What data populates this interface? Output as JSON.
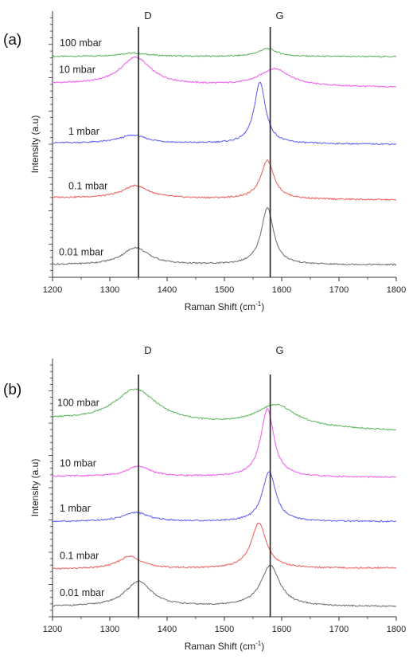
{
  "chart_data": [
    {
      "type": "line",
      "panel_label": "(a)",
      "xlabel": "Raman Shift (cm",
      "xlabel_sup": "-1",
      "xlabel_end": ")",
      "ylabel": "Intensity (a.u)",
      "xlim": [
        1200,
        1800
      ],
      "xticks": [
        "1200",
        "1300",
        "1400",
        "1500",
        "1600",
        "1700",
        "1800"
      ],
      "grid": false,
      "legend": "none",
      "reference_lines": [
        {
          "label": "D",
          "x": 1350
        },
        {
          "label": "G",
          "x": 1580
        }
      ],
      "series": [
        {
          "name": "100 mbar",
          "color": "#66b866",
          "baseline": 9.5,
          "slope": 0,
          "peaks": [
            {
              "x": 1340,
              "h": 0.15,
              "w": 35
            },
            {
              "x": 1575,
              "h": 0.35,
              "w": 20
            }
          ]
        },
        {
          "name": "10 mbar",
          "color": "#ee66ee",
          "baseline": 8.3,
          "slope": -0.15,
          "peaks": [
            {
              "x": 1345,
              "h": 1.2,
              "w": 32
            },
            {
              "x": 1588,
              "h": 0.75,
              "w": 32
            }
          ]
        },
        {
          "name": "1 mbar",
          "color": "#6666ee",
          "baseline": 5.7,
          "slope": -0.05,
          "peaks": [
            {
              "x": 1340,
              "h": 0.35,
              "w": 30
            },
            {
              "x": 1562,
              "h": 2.7,
              "w": 12
            }
          ]
        },
        {
          "name": "0.1 mbar",
          "color": "#ee6666",
          "baseline": 3.3,
          "slope": -0.1,
          "peaks": [
            {
              "x": 1345,
              "h": 0.55,
              "w": 28
            },
            {
              "x": 1575,
              "h": 1.7,
              "w": 14
            }
          ]
        },
        {
          "name": "0.01 mbar",
          "color": "#777777",
          "baseline": 0.35,
          "slope": 0,
          "peaks": [
            {
              "x": 1345,
              "h": 0.75,
              "w": 28
            },
            {
              "x": 1575,
              "h": 2.5,
              "w": 13
            }
          ]
        }
      ]
    },
    {
      "type": "line",
      "panel_label": "(b)",
      "xlabel": "Raman Shift (cm",
      "xlabel_sup": "-1",
      "xlabel_end": ")",
      "ylabel": "Intensity (a.u)",
      "xlim": [
        1200,
        1800
      ],
      "xticks": [
        "1200",
        "1300",
        "1400",
        "1500",
        "1600",
        "1700",
        "1800"
      ],
      "grid": false,
      "legend": "none",
      "reference_lines": [
        {
          "label": "D",
          "x": 1350
        },
        {
          "label": "G",
          "x": 1580
        }
      ],
      "series": [
        {
          "name": "100 mbar",
          "color": "#66b866",
          "baseline": 8.5,
          "slope": -0.5,
          "peaks": [
            {
              "x": 1345,
              "h": 1.45,
              "w": 45
            },
            {
              "x": 1590,
              "h": 0.95,
              "w": 42
            }
          ]
        },
        {
          "name": "10 mbar",
          "color": "#ee66ee",
          "baseline": 6.0,
          "slope": -0.05,
          "peaks": [
            {
              "x": 1350,
              "h": 0.45,
              "w": 25
            },
            {
              "x": 1575,
              "h": 3.0,
              "w": 14
            }
          ]
        },
        {
          "name": "1 mbar",
          "color": "#6666ee",
          "baseline": 4.0,
          "slope": 0,
          "peaks": [
            {
              "x": 1345,
              "h": 0.4,
              "w": 28
            },
            {
              "x": 1578,
              "h": 2.2,
              "w": 14
            }
          ]
        },
        {
          "name": "0.1 mbar",
          "color": "#ee6666",
          "baseline": 1.9,
          "slope": 0.05,
          "peaks": [
            {
              "x": 1335,
              "h": 0.55,
              "w": 25
            },
            {
              "x": 1560,
              "h": 2.0,
              "w": 16
            }
          ]
        },
        {
          "name": "0.01 mbar",
          "color": "#777777",
          "baseline": 0.25,
          "slope": 0,
          "peaks": [
            {
              "x": 1350,
              "h": 1.1,
              "w": 28
            },
            {
              "x": 1580,
              "h": 1.8,
              "w": 20
            }
          ]
        }
      ]
    }
  ]
}
